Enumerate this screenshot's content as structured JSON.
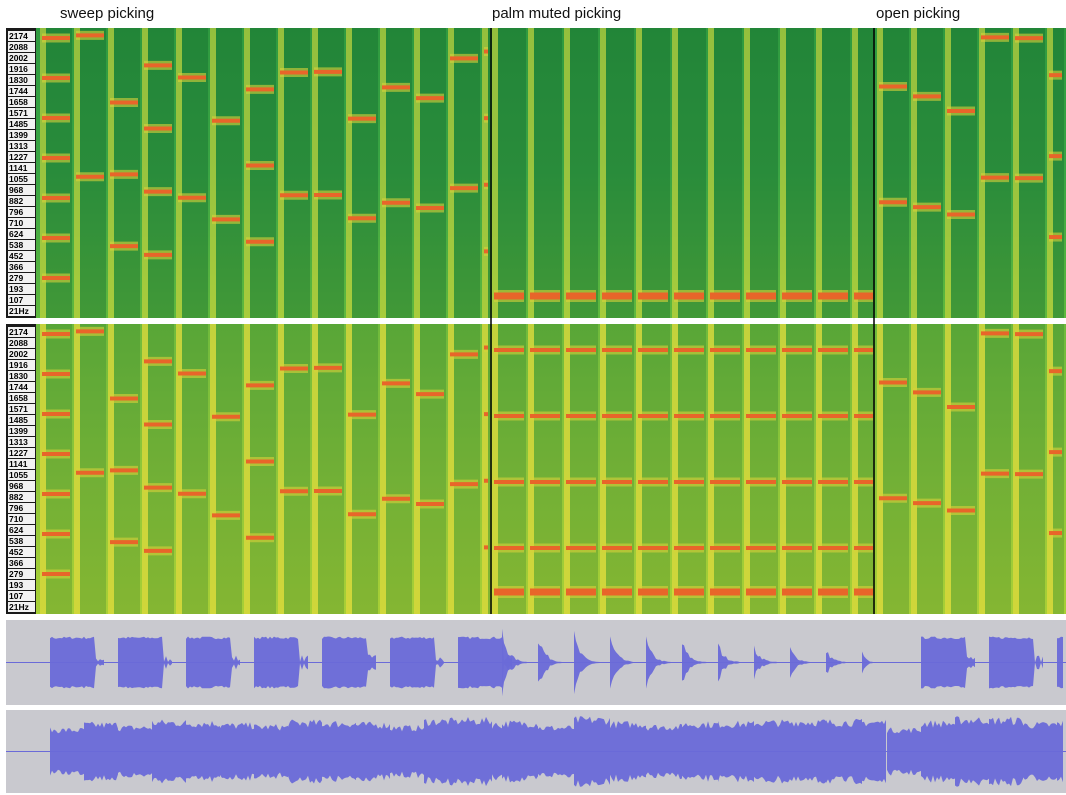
{
  "section_labels": [
    "sweep picking",
    "palm muted picking",
    "open picking"
  ],
  "freq_labels": [
    "2174",
    "2088",
    "2002",
    "1916",
    "1830",
    "1744",
    "1658",
    "1571",
    "1485",
    "1399",
    "1313",
    "1227",
    "1141",
    "1055",
    "968",
    "882",
    "796",
    "710",
    "624",
    "538",
    "452",
    "366",
    "279",
    "193",
    "107",
    "21Hz"
  ]
}
